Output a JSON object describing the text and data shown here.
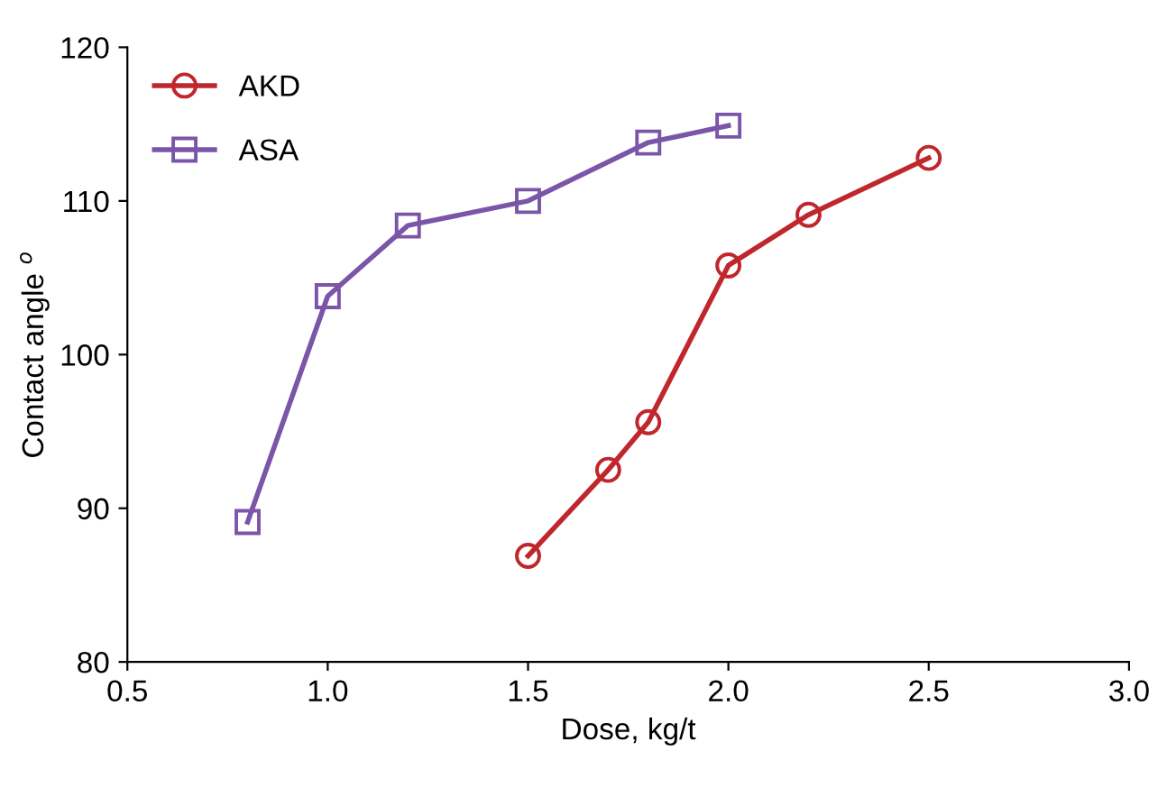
{
  "chart_data": {
    "type": "line",
    "xlabel": "Dose, kg/t",
    "ylabel": "Contact angle $^{o}$",
    "xlim": [
      0.5,
      3.0
    ],
    "xticks": [
      {
        "value": 0.5,
        "label": "0.5"
      },
      {
        "value": 1.0,
        "label": "1.0"
      },
      {
        "value": 1.5,
        "label": "1.5"
      },
      {
        "value": 2.0,
        "label": "2.0"
      },
      {
        "value": 2.5,
        "label": "2.5"
      },
      {
        "value": 3.0,
        "label": "3.0"
      }
    ],
    "ylim": [
      80,
      120
    ],
    "yticks": [
      80,
      90,
      100,
      110,
      120
    ],
    "grid": false,
    "legend": "top left",
    "line_style": "solid",
    "series": [
      {
        "name": "AKD",
        "color": "#c0272d",
        "marker": "circle",
        "x": [
          1.5,
          1.7,
          1.8,
          2.0,
          2.2,
          2.5
        ],
        "values": [
          86.9,
          92.5,
          95.6,
          105.8,
          109.1,
          112.8
        ]
      },
      {
        "name": "ASA",
        "color": "#7a55a8",
        "marker": "square",
        "x": [
          0.8,
          1.0,
          1.2,
          1.5,
          1.8,
          2.0
        ],
        "values": [
          89.1,
          103.8,
          108.4,
          110.0,
          113.8,
          114.9
        ]
      }
    ]
  }
}
